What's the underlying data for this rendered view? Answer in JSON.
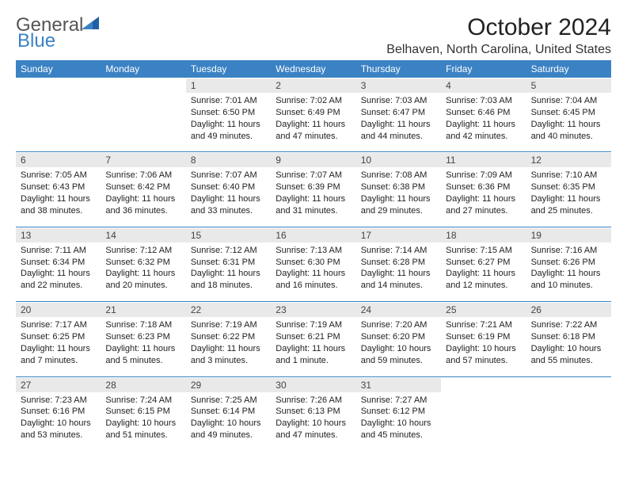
{
  "logo": {
    "word1": "General",
    "word2": "Blue"
  },
  "title": "October 2024",
  "location": "Belhaven, North Carolina, United States",
  "day_headers": [
    "Sunday",
    "Monday",
    "Tuesday",
    "Wednesday",
    "Thursday",
    "Friday",
    "Saturday"
  ],
  "colors": {
    "header_bg": "#3b82c4",
    "header_fg": "#ffffff",
    "daynum_bg": "#e9e9e9",
    "rule": "#3b82c4",
    "text": "#222222"
  },
  "weeks": [
    [
      {
        "blank": true
      },
      {
        "blank": true
      },
      {
        "n": "1",
        "sunrise": "Sunrise: 7:01 AM",
        "sunset": "Sunset: 6:50 PM",
        "day1": "Daylight: 11 hours",
        "day2": "and 49 minutes."
      },
      {
        "n": "2",
        "sunrise": "Sunrise: 7:02 AM",
        "sunset": "Sunset: 6:49 PM",
        "day1": "Daylight: 11 hours",
        "day2": "and 47 minutes."
      },
      {
        "n": "3",
        "sunrise": "Sunrise: 7:03 AM",
        "sunset": "Sunset: 6:47 PM",
        "day1": "Daylight: 11 hours",
        "day2": "and 44 minutes."
      },
      {
        "n": "4",
        "sunrise": "Sunrise: 7:03 AM",
        "sunset": "Sunset: 6:46 PM",
        "day1": "Daylight: 11 hours",
        "day2": "and 42 minutes."
      },
      {
        "n": "5",
        "sunrise": "Sunrise: 7:04 AM",
        "sunset": "Sunset: 6:45 PM",
        "day1": "Daylight: 11 hours",
        "day2": "and 40 minutes."
      }
    ],
    [
      {
        "n": "6",
        "sunrise": "Sunrise: 7:05 AM",
        "sunset": "Sunset: 6:43 PM",
        "day1": "Daylight: 11 hours",
        "day2": "and 38 minutes."
      },
      {
        "n": "7",
        "sunrise": "Sunrise: 7:06 AM",
        "sunset": "Sunset: 6:42 PM",
        "day1": "Daylight: 11 hours",
        "day2": "and 36 minutes."
      },
      {
        "n": "8",
        "sunrise": "Sunrise: 7:07 AM",
        "sunset": "Sunset: 6:40 PM",
        "day1": "Daylight: 11 hours",
        "day2": "and 33 minutes."
      },
      {
        "n": "9",
        "sunrise": "Sunrise: 7:07 AM",
        "sunset": "Sunset: 6:39 PM",
        "day1": "Daylight: 11 hours",
        "day2": "and 31 minutes."
      },
      {
        "n": "10",
        "sunrise": "Sunrise: 7:08 AM",
        "sunset": "Sunset: 6:38 PM",
        "day1": "Daylight: 11 hours",
        "day2": "and 29 minutes."
      },
      {
        "n": "11",
        "sunrise": "Sunrise: 7:09 AM",
        "sunset": "Sunset: 6:36 PM",
        "day1": "Daylight: 11 hours",
        "day2": "and 27 minutes."
      },
      {
        "n": "12",
        "sunrise": "Sunrise: 7:10 AM",
        "sunset": "Sunset: 6:35 PM",
        "day1": "Daylight: 11 hours",
        "day2": "and 25 minutes."
      }
    ],
    [
      {
        "n": "13",
        "sunrise": "Sunrise: 7:11 AM",
        "sunset": "Sunset: 6:34 PM",
        "day1": "Daylight: 11 hours",
        "day2": "and 22 minutes."
      },
      {
        "n": "14",
        "sunrise": "Sunrise: 7:12 AM",
        "sunset": "Sunset: 6:32 PM",
        "day1": "Daylight: 11 hours",
        "day2": "and 20 minutes."
      },
      {
        "n": "15",
        "sunrise": "Sunrise: 7:12 AM",
        "sunset": "Sunset: 6:31 PM",
        "day1": "Daylight: 11 hours",
        "day2": "and 18 minutes."
      },
      {
        "n": "16",
        "sunrise": "Sunrise: 7:13 AM",
        "sunset": "Sunset: 6:30 PM",
        "day1": "Daylight: 11 hours",
        "day2": "and 16 minutes."
      },
      {
        "n": "17",
        "sunrise": "Sunrise: 7:14 AM",
        "sunset": "Sunset: 6:28 PM",
        "day1": "Daylight: 11 hours",
        "day2": "and 14 minutes."
      },
      {
        "n": "18",
        "sunrise": "Sunrise: 7:15 AM",
        "sunset": "Sunset: 6:27 PM",
        "day1": "Daylight: 11 hours",
        "day2": "and 12 minutes."
      },
      {
        "n": "19",
        "sunrise": "Sunrise: 7:16 AM",
        "sunset": "Sunset: 6:26 PM",
        "day1": "Daylight: 11 hours",
        "day2": "and 10 minutes."
      }
    ],
    [
      {
        "n": "20",
        "sunrise": "Sunrise: 7:17 AM",
        "sunset": "Sunset: 6:25 PM",
        "day1": "Daylight: 11 hours",
        "day2": "and 7 minutes."
      },
      {
        "n": "21",
        "sunrise": "Sunrise: 7:18 AM",
        "sunset": "Sunset: 6:23 PM",
        "day1": "Daylight: 11 hours",
        "day2": "and 5 minutes."
      },
      {
        "n": "22",
        "sunrise": "Sunrise: 7:19 AM",
        "sunset": "Sunset: 6:22 PM",
        "day1": "Daylight: 11 hours",
        "day2": "and 3 minutes."
      },
      {
        "n": "23",
        "sunrise": "Sunrise: 7:19 AM",
        "sunset": "Sunset: 6:21 PM",
        "day1": "Daylight: 11 hours",
        "day2": "and 1 minute."
      },
      {
        "n": "24",
        "sunrise": "Sunrise: 7:20 AM",
        "sunset": "Sunset: 6:20 PM",
        "day1": "Daylight: 10 hours",
        "day2": "and 59 minutes."
      },
      {
        "n": "25",
        "sunrise": "Sunrise: 7:21 AM",
        "sunset": "Sunset: 6:19 PM",
        "day1": "Daylight: 10 hours",
        "day2": "and 57 minutes."
      },
      {
        "n": "26",
        "sunrise": "Sunrise: 7:22 AM",
        "sunset": "Sunset: 6:18 PM",
        "day1": "Daylight: 10 hours",
        "day2": "and 55 minutes."
      }
    ],
    [
      {
        "n": "27",
        "sunrise": "Sunrise: 7:23 AM",
        "sunset": "Sunset: 6:16 PM",
        "day1": "Daylight: 10 hours",
        "day2": "and 53 minutes."
      },
      {
        "n": "28",
        "sunrise": "Sunrise: 7:24 AM",
        "sunset": "Sunset: 6:15 PM",
        "day1": "Daylight: 10 hours",
        "day2": "and 51 minutes."
      },
      {
        "n": "29",
        "sunrise": "Sunrise: 7:25 AM",
        "sunset": "Sunset: 6:14 PM",
        "day1": "Daylight: 10 hours",
        "day2": "and 49 minutes."
      },
      {
        "n": "30",
        "sunrise": "Sunrise: 7:26 AM",
        "sunset": "Sunset: 6:13 PM",
        "day1": "Daylight: 10 hours",
        "day2": "and 47 minutes."
      },
      {
        "n": "31",
        "sunrise": "Sunrise: 7:27 AM",
        "sunset": "Sunset: 6:12 PM",
        "day1": "Daylight: 10 hours",
        "day2": "and 45 minutes."
      },
      {
        "blank": true
      },
      {
        "blank": true
      }
    ]
  ]
}
